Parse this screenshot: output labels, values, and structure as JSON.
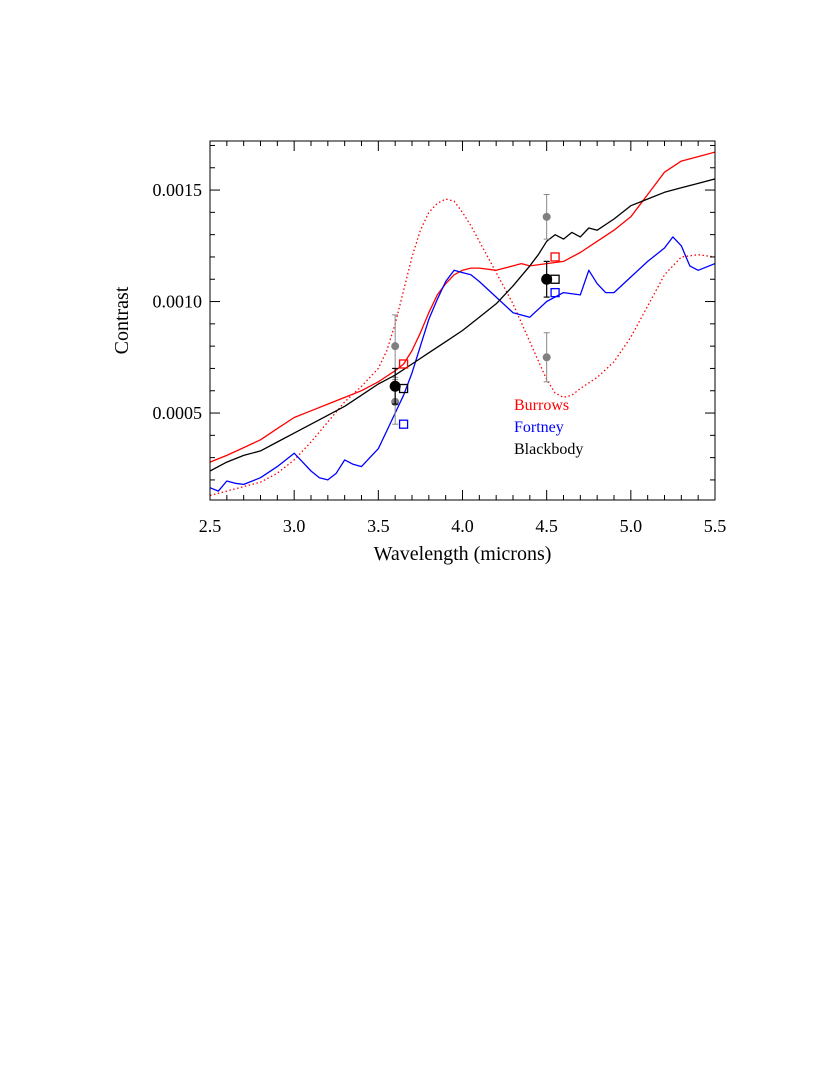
{
  "chart_data": {
    "type": "line",
    "title": "",
    "xlabel": "Wavelength (microns)",
    "ylabel": "Contrast",
    "xlim": [
      2.5,
      5.5
    ],
    "ylim": [
      0.00011,
      0.00172
    ],
    "xticks": [
      2.5,
      3.0,
      3.5,
      4.0,
      4.5,
      5.0,
      5.5
    ],
    "xtick_labels": [
      "2.5",
      "3.0",
      "3.5",
      "4.0",
      "4.5",
      "5.0",
      "5.5"
    ],
    "yticks": [
      0.0005,
      0.001,
      0.0015
    ],
    "ytick_labels": [
      "0.0005",
      "0.0010",
      "0.0015"
    ],
    "grid": false,
    "legend": {
      "placement": "lower-right",
      "entries": [
        {
          "label": "Burrows",
          "color": "#ff0000"
        },
        {
          "label": "Fortney",
          "color": "#0000ff"
        },
        {
          "label": "Blackbody",
          "color": "#000000"
        }
      ]
    },
    "series": [
      {
        "name": "Burrows",
        "color": "#ff0000",
        "style": "solid",
        "x": [
          2.5,
          2.6,
          2.7,
          2.8,
          2.9,
          3.0,
          3.1,
          3.2,
          3.3,
          3.4,
          3.5,
          3.6,
          3.65,
          3.7,
          3.75,
          3.8,
          3.85,
          3.9,
          3.95,
          4.0,
          4.05,
          4.1,
          4.2,
          4.3,
          4.35,
          4.4,
          4.5,
          4.6,
          4.7,
          4.8,
          4.9,
          5.0,
          5.1,
          5.2,
          5.3,
          5.4,
          5.5
        ],
        "y": [
          0.00028,
          0.00031,
          0.000345,
          0.00038,
          0.00043,
          0.00048,
          0.00051,
          0.00054,
          0.00057,
          0.0006,
          0.00064,
          0.00069,
          0.00072,
          0.00078,
          0.00086,
          0.00095,
          0.00103,
          0.00108,
          0.00112,
          0.00114,
          0.00115,
          0.00115,
          0.00114,
          0.00116,
          0.00117,
          0.00116,
          0.00117,
          0.00118,
          0.00122,
          0.00127,
          0.00132,
          0.00138,
          0.00148,
          0.00158,
          0.00163,
          0.00165,
          0.00167
        ]
      },
      {
        "name": "Burrows",
        "color": "#ff0000",
        "style": "dotted",
        "x": [
          2.5,
          2.6,
          2.7,
          2.8,
          2.9,
          3.0,
          3.1,
          3.2,
          3.3,
          3.4,
          3.5,
          3.55,
          3.6,
          3.65,
          3.7,
          3.75,
          3.8,
          3.85,
          3.9,
          3.95,
          4.0,
          4.05,
          4.1,
          4.2,
          4.3,
          4.4,
          4.5,
          4.55,
          4.6,
          4.65,
          4.7,
          4.8,
          4.9,
          5.0,
          5.1,
          5.2,
          5.3,
          5.4,
          5.5
        ],
        "y": [
          0.00013,
          0.00015,
          0.00017,
          0.00019,
          0.00023,
          0.00029,
          0.00037,
          0.00046,
          0.00055,
          0.00062,
          0.0007,
          0.00078,
          0.0009,
          0.00105,
          0.0012,
          0.00132,
          0.0014,
          0.00144,
          0.00146,
          0.00145,
          0.0014,
          0.00134,
          0.00127,
          0.00113,
          0.00099,
          0.00082,
          0.00065,
          0.00059,
          0.00057,
          0.00058,
          0.00061,
          0.00066,
          0.00073,
          0.00084,
          0.00098,
          0.00112,
          0.0012,
          0.00121,
          0.0012
        ]
      },
      {
        "name": "Fortney",
        "color": "#0000ff",
        "style": "solid",
        "x": [
          2.5,
          2.55,
          2.6,
          2.65,
          2.7,
          2.8,
          2.9,
          3.0,
          3.05,
          3.1,
          3.15,
          3.2,
          3.25,
          3.3,
          3.35,
          3.4,
          3.45,
          3.5,
          3.55,
          3.6,
          3.65,
          3.7,
          3.75,
          3.8,
          3.85,
          3.9,
          3.95,
          4.0,
          4.05,
          4.1,
          4.2,
          4.3,
          4.4,
          4.5,
          4.6,
          4.7,
          4.75,
          4.8,
          4.85,
          4.9,
          5.0,
          5.1,
          5.2,
          5.25,
          5.3,
          5.35,
          5.4,
          5.5
        ],
        "y": [
          0.000165,
          0.00015,
          0.000195,
          0.000185,
          0.00018,
          0.00021,
          0.00026,
          0.00032,
          0.00028,
          0.00024,
          0.00021,
          0.0002,
          0.00023,
          0.00029,
          0.00027,
          0.00026,
          0.0003,
          0.00034,
          0.00042,
          0.0005,
          0.00058,
          0.00068,
          0.0008,
          0.00092,
          0.00101,
          0.00109,
          0.00114,
          0.00113,
          0.00112,
          0.00109,
          0.00102,
          0.00095,
          0.00093,
          0.001,
          0.00104,
          0.00103,
          0.00114,
          0.00108,
          0.00104,
          0.00104,
          0.00111,
          0.00118,
          0.00124,
          0.00129,
          0.00125,
          0.00116,
          0.00114,
          0.00117
        ]
      },
      {
        "name": "Blackbody",
        "color": "#000000",
        "style": "solid",
        "x": [
          2.5,
          2.6,
          2.7,
          2.8,
          2.9,
          3.0,
          3.1,
          3.2,
          3.3,
          3.4,
          3.5,
          3.6,
          3.7,
          3.8,
          3.9,
          4.0,
          4.1,
          4.2,
          4.3,
          4.4,
          4.45,
          4.5,
          4.55,
          4.6,
          4.65,
          4.7,
          4.75,
          4.8,
          4.9,
          5.0,
          5.1,
          5.2,
          5.3,
          5.4,
          5.5
        ],
        "y": [
          0.00024,
          0.00028,
          0.00031,
          0.00033,
          0.00037,
          0.00041,
          0.00045,
          0.00049,
          0.00053,
          0.00058,
          0.00063,
          0.00067,
          0.00072,
          0.00077,
          0.00082,
          0.00087,
          0.00093,
          0.00099,
          0.00107,
          0.00116,
          0.00121,
          0.00127,
          0.0013,
          0.00128,
          0.00131,
          0.00129,
          0.00133,
          0.00132,
          0.00137,
          0.00143,
          0.00146,
          0.00149,
          0.00151,
          0.00153,
          0.00155
        ]
      }
    ],
    "gray_points": [
      {
        "x": 3.6,
        "y": 0.0008,
        "err": 0.00014
      },
      {
        "x": 3.6,
        "y": 0.00055,
        "err": 0.0001
      },
      {
        "x": 4.5,
        "y": 0.00138,
        "err": 0.0001
      },
      {
        "x": 4.5,
        "y": 0.00075,
        "err": 0.00011
      }
    ],
    "black_points": [
      {
        "x": 3.6,
        "y": 0.00062,
        "err": 8e-05
      },
      {
        "x": 4.5,
        "y": 0.0011,
        "err": 8e-05
      }
    ],
    "model_squares": [
      {
        "series": "Burrows",
        "color": "#ff0000",
        "x": 3.65,
        "y": 0.00072
      },
      {
        "series": "Blackbody",
        "color": "#000000",
        "x": 3.65,
        "y": 0.00061
      },
      {
        "series": "Fortney",
        "color": "#0000ff",
        "x": 3.65,
        "y": 0.00045
      },
      {
        "series": "Burrows",
        "color": "#ff0000",
        "x": 4.55,
        "y": 0.0012
      },
      {
        "series": "Blackbody",
        "color": "#000000",
        "x": 4.55,
        "y": 0.0011
      },
      {
        "series": "Fortney",
        "color": "#0000ff",
        "x": 4.55,
        "y": 0.00104
      }
    ]
  }
}
